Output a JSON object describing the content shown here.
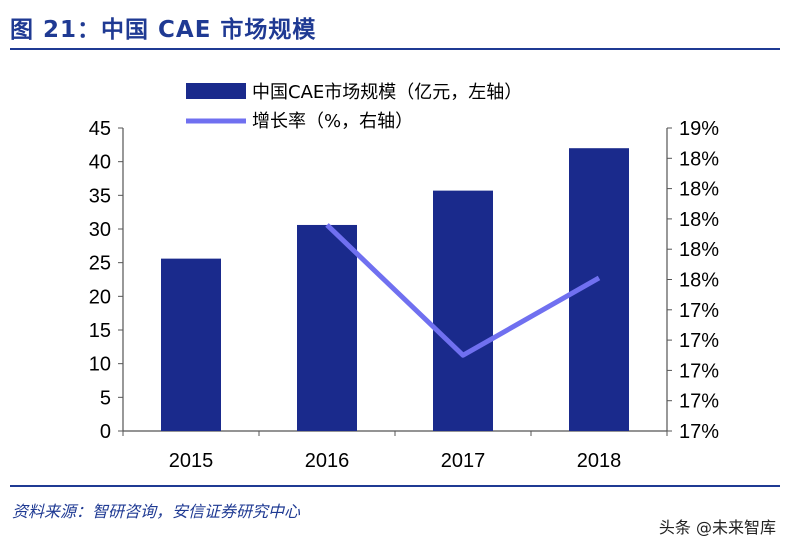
{
  "figure": {
    "title": "图 21：中国 CAE 市场规模",
    "source": "资料来源：智研咨询，安信证券研究中心",
    "watermark": "头条 @未来智库"
  },
  "chart_data": {
    "type": "bar",
    "categories": [
      "2015",
      "2016",
      "2017",
      "2018"
    ],
    "series": [
      {
        "name": "中国CAE市场规模（亿元，左轴）",
        "type": "bar",
        "axis": "left",
        "color": "#1a2a8c",
        "values": [
          25.6,
          30.6,
          35.7,
          42.0
        ]
      },
      {
        "name": "增长率（%，右轴）",
        "type": "line",
        "axis": "right",
        "color": "#7070f0",
        "values": [
          null,
          18.31,
          17.45,
          17.96
        ]
      }
    ],
    "y_left": {
      "min": 0,
      "max": 45,
      "ticks": [
        "0",
        "5",
        "10",
        "15",
        "20",
        "25",
        "30",
        "35",
        "40",
        "45"
      ]
    },
    "y_right": {
      "min": 16.95,
      "max": 18.95,
      "ticks": [
        "17%",
        "17%",
        "17%",
        "17%",
        "17%",
        "18%",
        "18%",
        "18%",
        "18%",
        "18%",
        "19%"
      ]
    },
    "legend_position": "top",
    "grid": false
  }
}
